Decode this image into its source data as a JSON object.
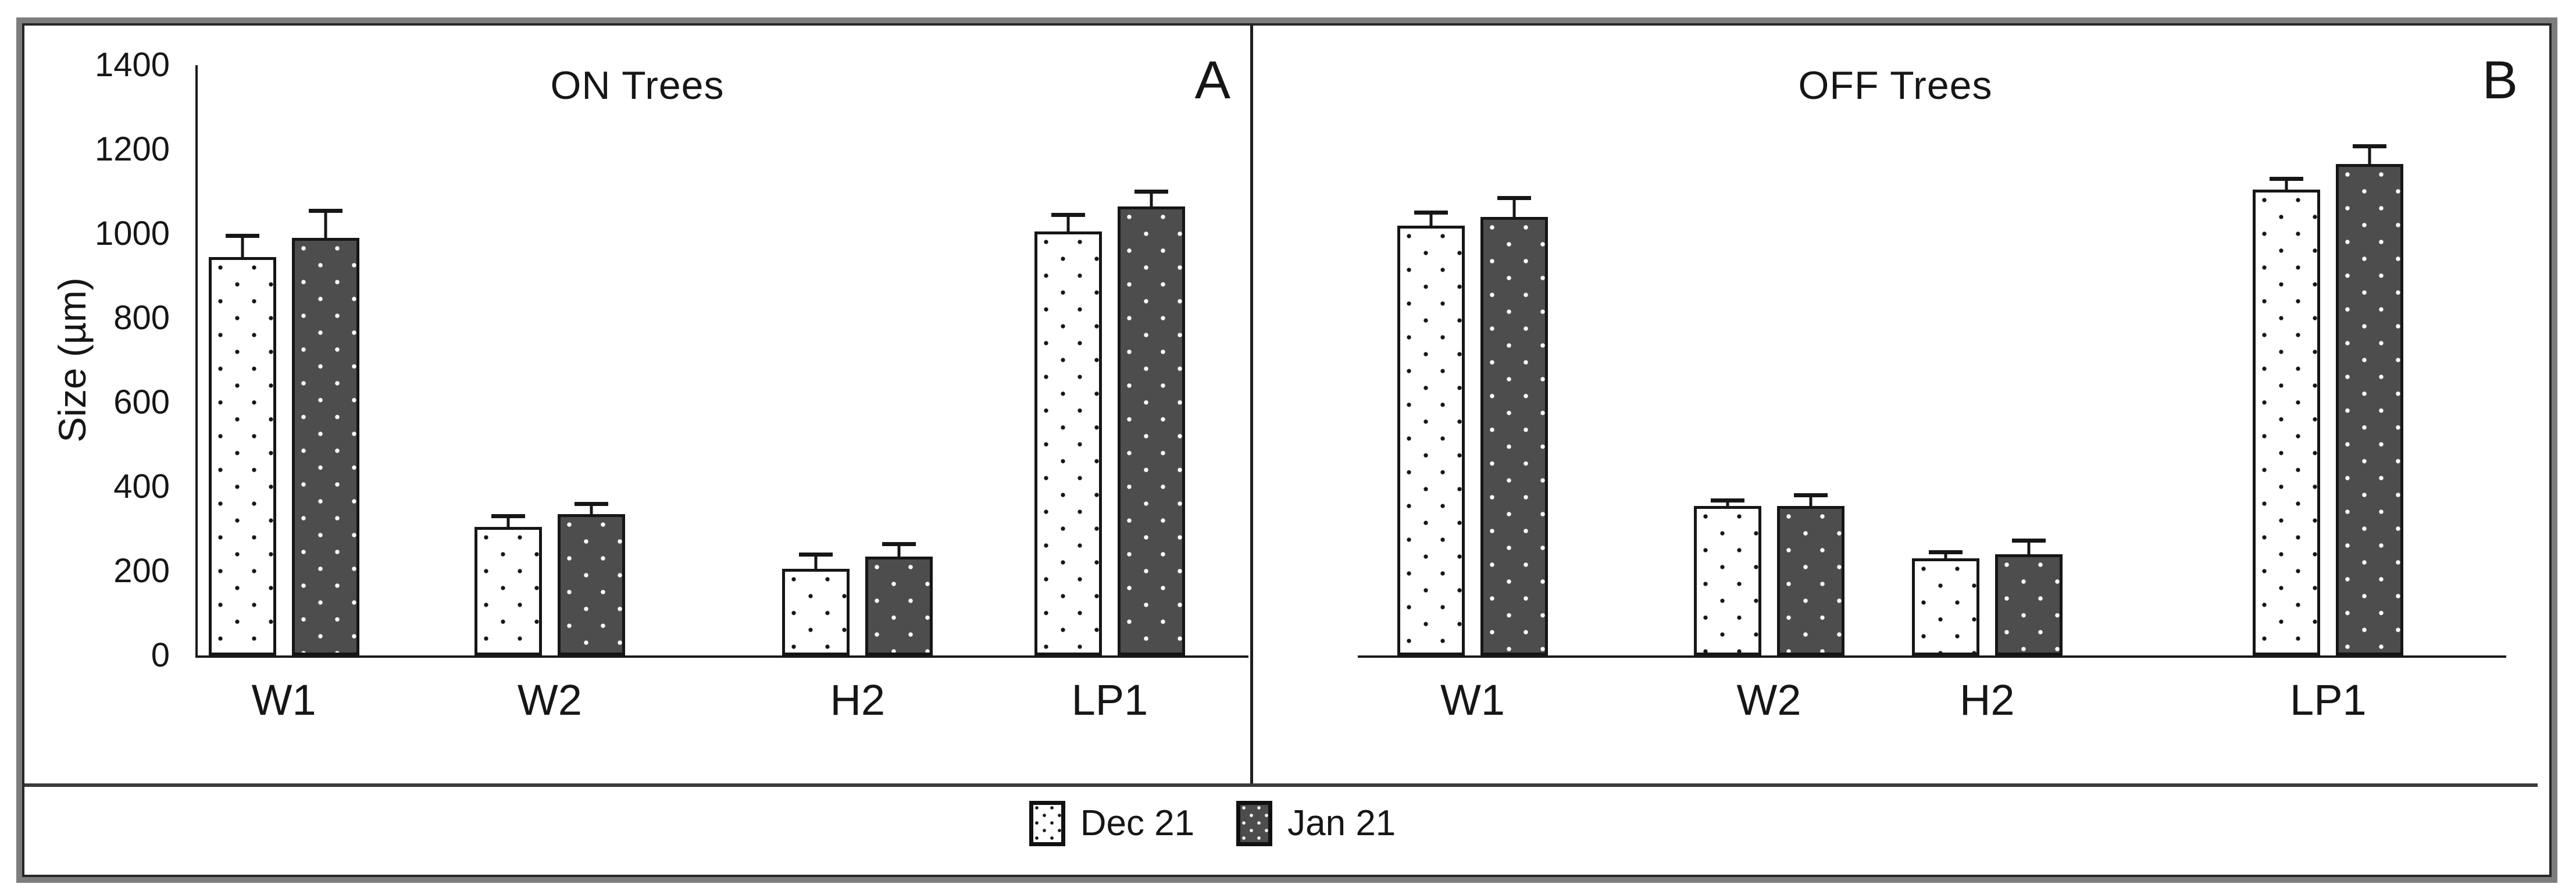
{
  "chart_data": {
    "type": "bar",
    "ylabel": "Size (µm)",
    "ylim": [
      0,
      1400
    ],
    "ytick_step": 200,
    "yticks": [
      0,
      200,
      400,
      600,
      800,
      1000,
      1200,
      1400
    ],
    "categories": [
      "W1",
      "W2",
      "H2",
      "LP1"
    ],
    "legend": [
      "Dec 21",
      "Jan 21"
    ],
    "legend_position": "bottom",
    "grid": false,
    "error_bars": "upper",
    "panels": [
      {
        "title": "ON Trees",
        "corner_label": "A",
        "group_centers": [
          0.082,
          0.335,
          0.628,
          0.868
        ],
        "series": [
          {
            "name": "Dec 21",
            "values": [
              945,
              305,
              205,
              1005
            ],
            "errors": [
              45,
              20,
              30,
              35
            ]
          },
          {
            "name": "Jan 21",
            "values": [
              990,
              335,
              235,
              1065
            ],
            "errors": [
              60,
              20,
              25,
              30
            ]
          }
        ]
      },
      {
        "title": "OFF Trees",
        "corner_label": "B",
        "group_centers": [
          0.1,
          0.358,
          0.548,
          0.845
        ],
        "series": [
          {
            "name": "Dec 21",
            "values": [
              1020,
              355,
              230,
              1105
            ],
            "errors": [
              25,
              8,
              10,
              20
            ]
          },
          {
            "name": "Jan 21",
            "values": [
              1040,
              355,
              240,
              1165
            ],
            "errors": [
              40,
              20,
              28,
              38
            ]
          }
        ]
      }
    ],
    "colors": {
      "dec_fill": "#ffffff",
      "dec_dot": "#161616",
      "jan_fill": "#4d4d4d",
      "jan_dot": "#fbfbfb",
      "axis": "#1a1a1a",
      "outer_frame": "#7d7d7d",
      "inner_frame": "#262626"
    }
  }
}
